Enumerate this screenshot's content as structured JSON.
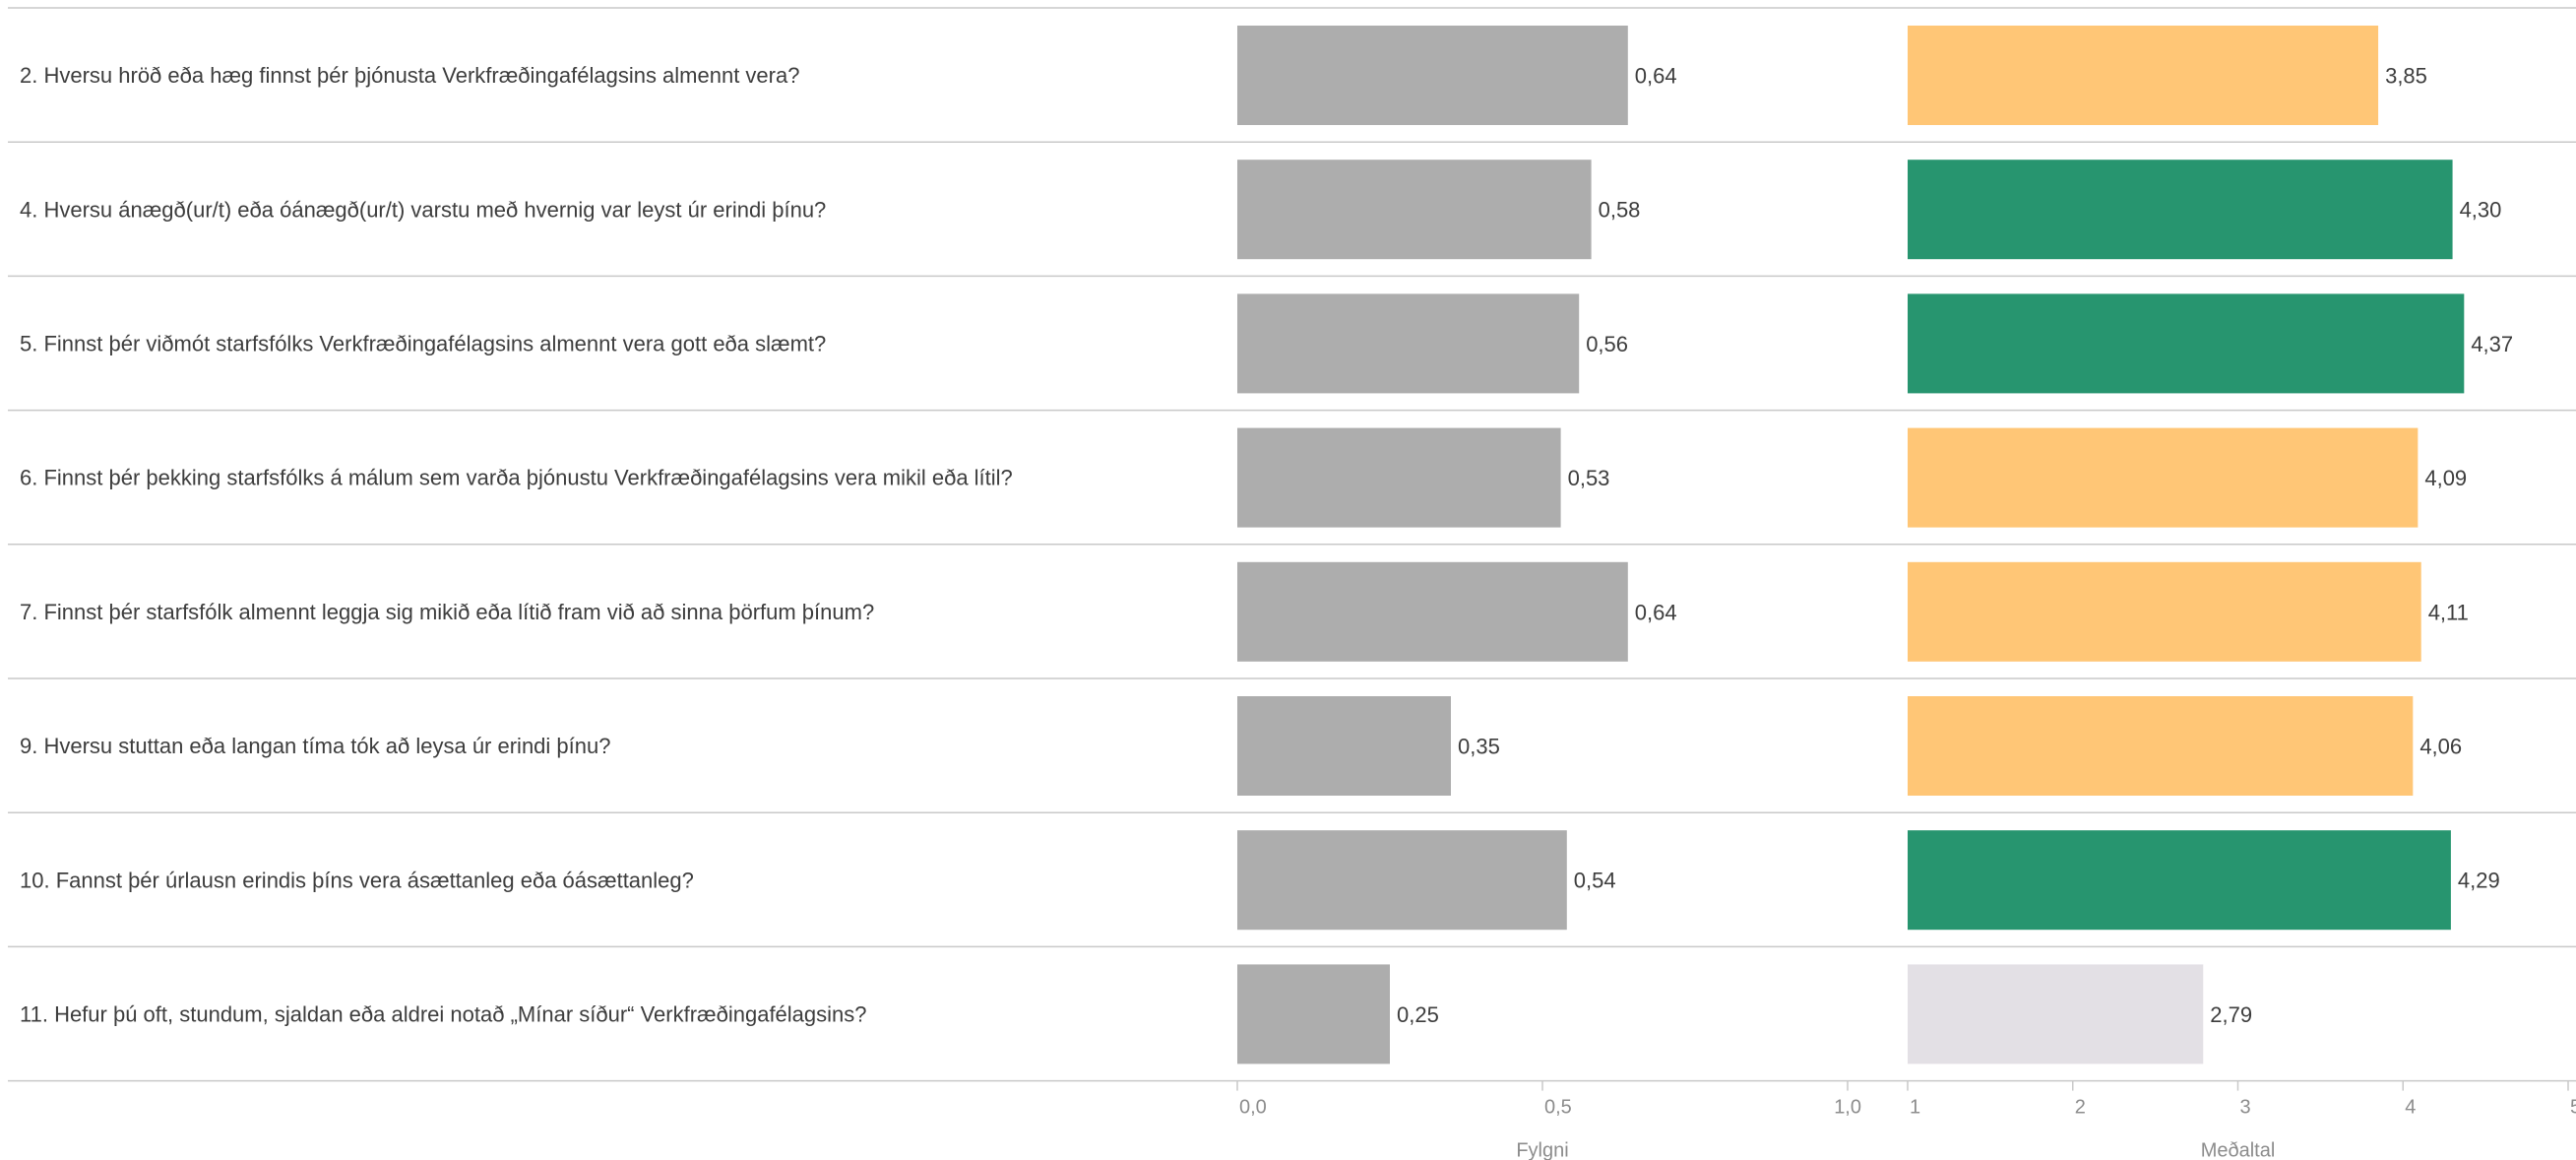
{
  "chart_data": {
    "type": "bar",
    "orientation": "horizontal",
    "categories": [
      "2. Hversu hröð eða hæg finnst þér þjónusta Verkfræðingafélagsins almennt vera?",
      "4. Hversu ánægð(ur/t) eða óánægð(ur/t) varstu með hvernig var leyst úr erindi þínu?",
      "5. Finnst þér viðmót starfsfólks Verkfræðingafélagsins almennt vera gott eða slæmt?",
      "6. Finnst þér þekking starfsfólks á málum sem varða þjónustu Verkfræðingafélagsins vera mikil eða lítil?",
      "7. Finnst þér starfsfólk almennt leggja sig mikið eða lítið fram við að sinna þörfum þínum?",
      "9. Hversu stuttan eða langan tíma tók að leysa úr erindi þínu?",
      "10. Fannst þér úrlausn erindis þíns vera ásættanleg eða óásættanleg?",
      "11. Hefur þú oft, stundum, sjaldan eða aldrei notað „Mínar síður“ Verkfræðingafélagsins?"
    ],
    "panels": [
      {
        "xlabel": "Fylgni",
        "xlim": [
          0,
          1
        ],
        "ticks": [
          0,
          0.5,
          1
        ],
        "tick_labels": [
          "0,0",
          "0,5",
          "1,0"
        ],
        "values": [
          0.64,
          0.58,
          0.56,
          0.53,
          0.64,
          0.35,
          0.54,
          0.25
        ],
        "labels": [
          "0,64",
          "0,58",
          "0,56",
          "0,53",
          "0,64",
          "0,35",
          "0,54",
          "0,25"
        ],
        "colors": [
          "#adadad",
          "#adadad",
          "#adadad",
          "#adadad",
          "#adadad",
          "#adadad",
          "#adadad",
          "#adadad"
        ]
      },
      {
        "xlabel": "Meðaltal",
        "xlim": [
          1,
          5
        ],
        "ticks": [
          1,
          2,
          3,
          4,
          5
        ],
        "tick_labels": [
          "1",
          "2",
          "3",
          "4",
          "5"
        ],
        "values": [
          3.85,
          4.3,
          4.37,
          4.09,
          4.11,
          4.06,
          4.29,
          2.79
        ],
        "labels": [
          "3,85",
          "4,30",
          "4,37",
          "4,09",
          "4,11",
          "4,06",
          "4,29",
          "2,79"
        ],
        "colors": [
          "#ffc676",
          "#27956f",
          "#27956f",
          "#ffc676",
          "#ffc676",
          "#ffc676",
          "#27956f",
          "#e3e0e5"
        ]
      }
    ],
    "grid": false,
    "legend": "none"
  },
  "style": {
    "text_color": "#3d3d3d",
    "axis_text_color": "#8c8c8c",
    "rule_color": "#c9c9c9"
  }
}
